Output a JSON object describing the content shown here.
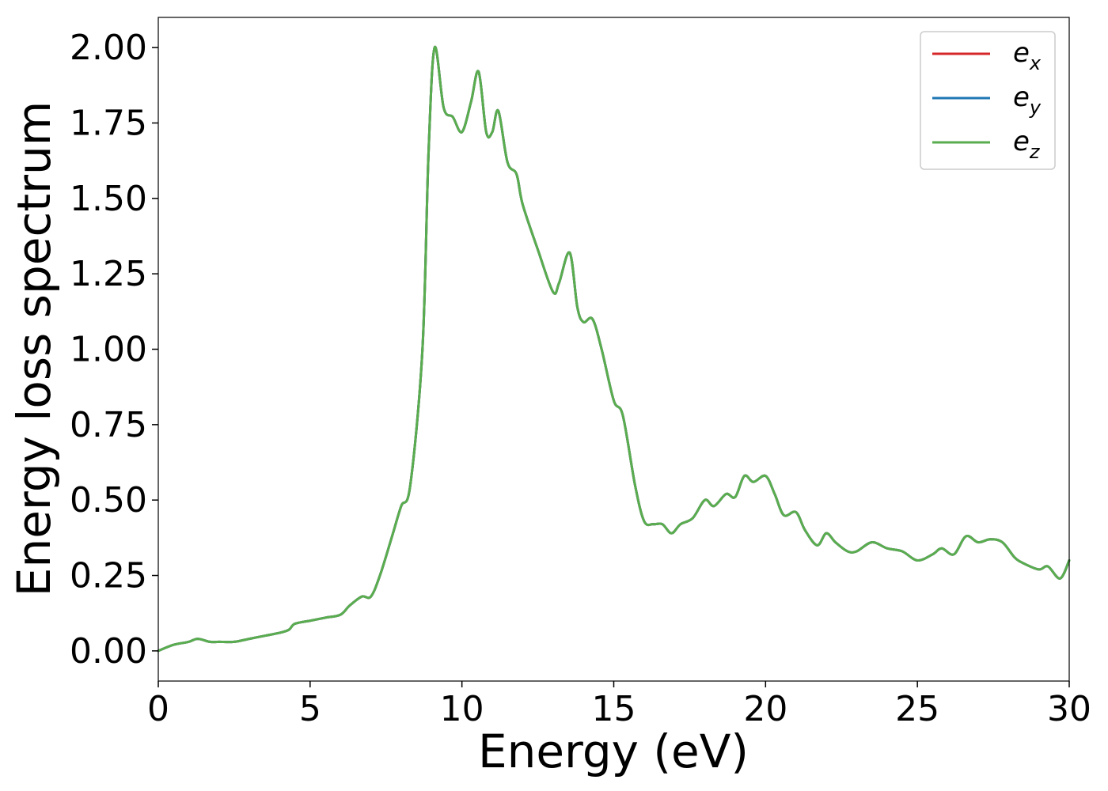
{
  "chart_data": {
    "type": "line",
    "xlabel": "Energy (eV)",
    "ylabel": "Energy loss spectrum",
    "xlim": [
      0,
      30
    ],
    "ylim": [
      -0.1,
      2.1
    ],
    "xticks": [
      0,
      5,
      10,
      15,
      20,
      25,
      30
    ],
    "xtick_labels": [
      "0",
      "5",
      "10",
      "15",
      "20",
      "25",
      "30"
    ],
    "yticks": [
      0,
      0.25,
      0.5,
      0.75,
      1.0,
      1.25,
      1.5,
      1.75,
      2.0
    ],
    "ytick_labels": [
      "0.00",
      "0.25",
      "0.50",
      "0.75",
      "1.00",
      "1.25",
      "1.50",
      "1.75",
      "2.00"
    ],
    "grid": false,
    "legend_position": "top-right",
    "x": [
      0,
      0.5,
      1.0,
      1.3,
      1.7,
      2.0,
      2.5,
      3.0,
      3.5,
      4.0,
      4.3,
      4.5,
      5.0,
      5.5,
      6.0,
      6.3,
      6.7,
      7.0,
      7.3,
      7.7,
      8.0,
      8.3,
      8.7,
      8.9,
      9.1,
      9.4,
      9.7,
      10.0,
      10.3,
      10.55,
      10.8,
      11.0,
      11.2,
      11.5,
      11.8,
      12.0,
      12.5,
      13.0,
      13.2,
      13.55,
      13.8,
      14.0,
      14.3,
      14.6,
      15.0,
      15.3,
      15.7,
      16.0,
      16.3,
      16.6,
      16.9,
      17.2,
      17.6,
      18.0,
      18.3,
      18.7,
      19.0,
      19.3,
      19.6,
      20.0,
      20.3,
      20.6,
      21.0,
      21.3,
      21.7,
      22.0,
      22.3,
      22.7,
      23.0,
      23.5,
      24.0,
      24.5,
      25.0,
      25.5,
      25.8,
      26.2,
      26.6,
      27.0,
      27.4,
      27.8,
      28.2,
      28.5,
      29.0,
      29.3,
      29.7,
      30.0
    ],
    "series": [
      {
        "name": "e_x",
        "label_main": "e",
        "label_sub": "x",
        "color": "#d62728",
        "values": [
          0.0,
          0.02,
          0.03,
          0.04,
          0.03,
          0.03,
          0.03,
          0.04,
          0.05,
          0.06,
          0.07,
          0.09,
          0.1,
          0.11,
          0.12,
          0.15,
          0.18,
          0.18,
          0.25,
          0.38,
          0.48,
          0.55,
          1.0,
          1.65,
          2.0,
          1.8,
          1.77,
          1.72,
          1.82,
          1.92,
          1.72,
          1.72,
          1.79,
          1.62,
          1.58,
          1.48,
          1.33,
          1.19,
          1.22,
          1.32,
          1.14,
          1.09,
          1.1,
          1.0,
          0.83,
          0.78,
          0.55,
          0.43,
          0.42,
          0.42,
          0.39,
          0.42,
          0.44,
          0.5,
          0.48,
          0.52,
          0.51,
          0.58,
          0.56,
          0.58,
          0.52,
          0.45,
          0.46,
          0.4,
          0.35,
          0.39,
          0.36,
          0.33,
          0.33,
          0.36,
          0.34,
          0.33,
          0.3,
          0.32,
          0.34,
          0.32,
          0.38,
          0.36,
          0.37,
          0.36,
          0.31,
          0.29,
          0.27,
          0.28,
          0.24,
          0.3
        ]
      },
      {
        "name": "e_y",
        "label_main": "e",
        "label_sub": "y",
        "color": "#1f77b4",
        "values": [
          0.0,
          0.02,
          0.03,
          0.04,
          0.03,
          0.03,
          0.03,
          0.04,
          0.05,
          0.06,
          0.07,
          0.09,
          0.1,
          0.11,
          0.12,
          0.15,
          0.18,
          0.18,
          0.25,
          0.38,
          0.48,
          0.55,
          1.0,
          1.65,
          2.0,
          1.8,
          1.77,
          1.72,
          1.82,
          1.92,
          1.72,
          1.72,
          1.79,
          1.62,
          1.58,
          1.48,
          1.33,
          1.19,
          1.22,
          1.32,
          1.14,
          1.09,
          1.1,
          1.0,
          0.83,
          0.78,
          0.55,
          0.43,
          0.42,
          0.42,
          0.39,
          0.42,
          0.44,
          0.5,
          0.48,
          0.52,
          0.51,
          0.58,
          0.56,
          0.58,
          0.52,
          0.45,
          0.46,
          0.4,
          0.35,
          0.39,
          0.36,
          0.33,
          0.33,
          0.36,
          0.34,
          0.33,
          0.3,
          0.32,
          0.34,
          0.32,
          0.38,
          0.36,
          0.37,
          0.36,
          0.31,
          0.29,
          0.27,
          0.28,
          0.24,
          0.3
        ]
      },
      {
        "name": "e_z",
        "label_main": "e",
        "label_sub": "z",
        "color": "#5aad4f",
        "values": [
          0.0,
          0.02,
          0.03,
          0.04,
          0.03,
          0.03,
          0.03,
          0.04,
          0.05,
          0.06,
          0.07,
          0.09,
          0.1,
          0.11,
          0.12,
          0.15,
          0.18,
          0.18,
          0.25,
          0.38,
          0.48,
          0.55,
          1.0,
          1.65,
          2.0,
          1.8,
          1.77,
          1.72,
          1.82,
          1.92,
          1.72,
          1.72,
          1.79,
          1.62,
          1.58,
          1.48,
          1.33,
          1.19,
          1.22,
          1.32,
          1.14,
          1.09,
          1.1,
          1.0,
          0.83,
          0.78,
          0.55,
          0.43,
          0.42,
          0.42,
          0.39,
          0.42,
          0.44,
          0.5,
          0.48,
          0.52,
          0.51,
          0.58,
          0.56,
          0.58,
          0.52,
          0.45,
          0.46,
          0.4,
          0.35,
          0.39,
          0.36,
          0.33,
          0.33,
          0.36,
          0.34,
          0.33,
          0.3,
          0.32,
          0.34,
          0.32,
          0.38,
          0.36,
          0.37,
          0.36,
          0.31,
          0.29,
          0.27,
          0.28,
          0.24,
          0.3
        ]
      }
    ]
  }
}
